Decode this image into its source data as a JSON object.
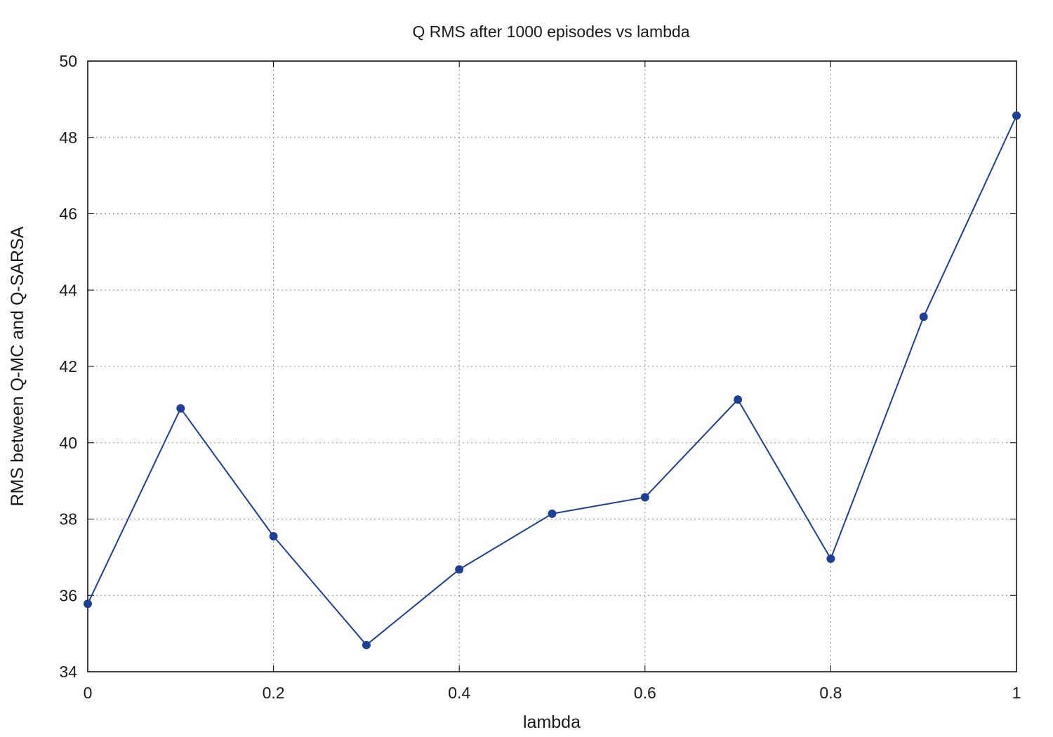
{
  "chart_data": {
    "type": "line",
    "title": "Q RMS after 1000 episodes vs lambda",
    "xlabel": "lambda",
    "ylabel": "RMS between Q-MC and Q-SARSA",
    "xlim": [
      0,
      1
    ],
    "ylim": [
      34,
      50
    ],
    "x_ticks": [
      0,
      0.2,
      0.4,
      0.6,
      0.8,
      1
    ],
    "x_tick_labels": [
      "0",
      "0.2",
      "0.4",
      "0.6",
      "0.8",
      "1"
    ],
    "y_ticks": [
      34,
      36,
      38,
      40,
      42,
      44,
      46,
      48,
      50
    ],
    "y_tick_labels": [
      "34",
      "36",
      "38",
      "40",
      "42",
      "44",
      "46",
      "48",
      "50"
    ],
    "grid": true,
    "legend": "none",
    "colors": {
      "series": "#1f3f94"
    },
    "series": [
      {
        "x": [
          0,
          0.1,
          0.2,
          0.3,
          0.4,
          0.5,
          0.6,
          0.7,
          0.8,
          0.9,
          1.0
        ],
        "y": [
          35.78,
          40.9,
          37.55,
          34.7,
          36.68,
          38.14,
          38.57,
          41.13,
          36.96,
          43.3,
          48.57
        ]
      }
    ]
  }
}
